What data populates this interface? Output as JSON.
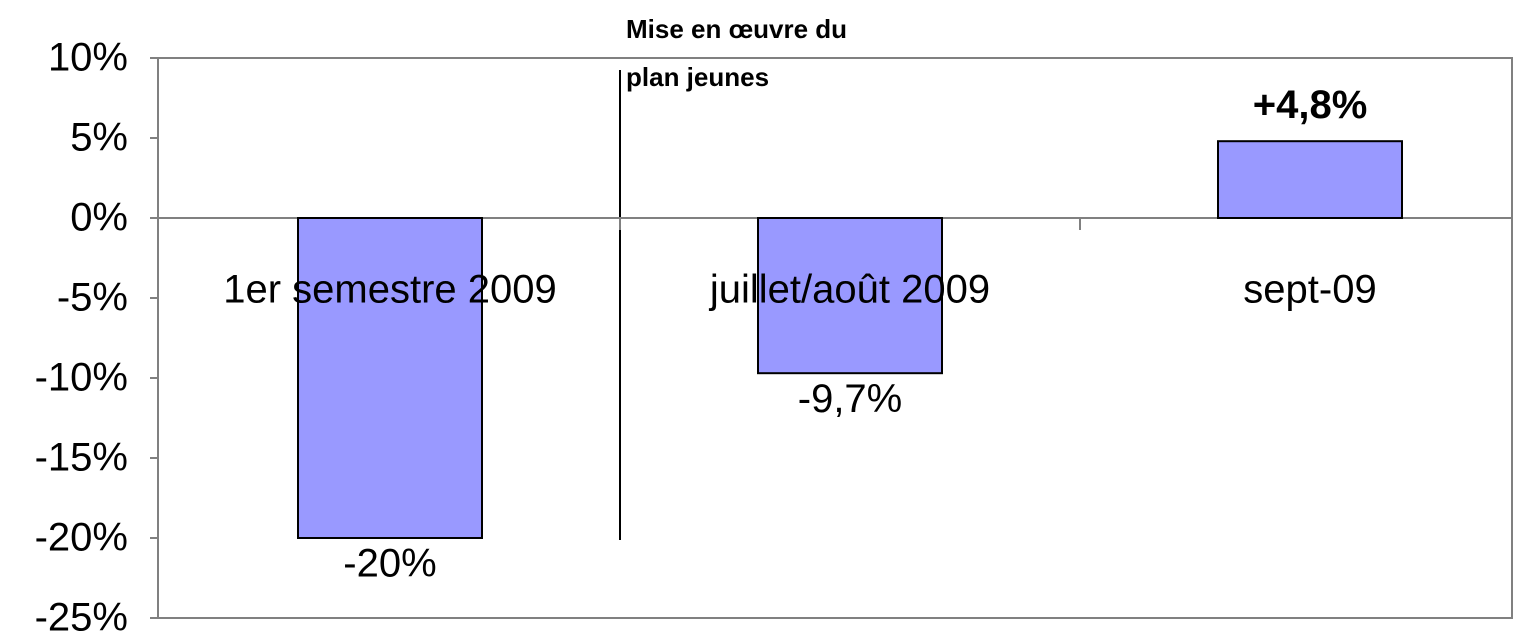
{
  "chart_data": {
    "type": "bar",
    "annotation": [
      "Mise en œuvre du",
      "plan jeunes"
    ],
    "categories": [
      "1er semestre 2009",
      "juillet/août 2009",
      "sept-09"
    ],
    "values": [
      -20,
      -9.7,
      4.8
    ],
    "value_labels": [
      "-20%",
      "-9,7%",
      "+4,8%"
    ],
    "color": "#9999ff",
    "ylim": [
      -25,
      10
    ],
    "yticks": [
      {
        "value": -25,
        "label": "-25%"
      },
      {
        "value": -20,
        "label": "-20%"
      },
      {
        "value": -15,
        "label": "-15%"
      },
      {
        "value": -10,
        "label": "-10%"
      },
      {
        "value": -5,
        "label": "-5%"
      },
      {
        "value": 0,
        "label": "0%"
      },
      {
        "value": 5,
        "label": "5%"
      },
      {
        "value": 10,
        "label": "10%"
      }
    ],
    "grid": false
  }
}
